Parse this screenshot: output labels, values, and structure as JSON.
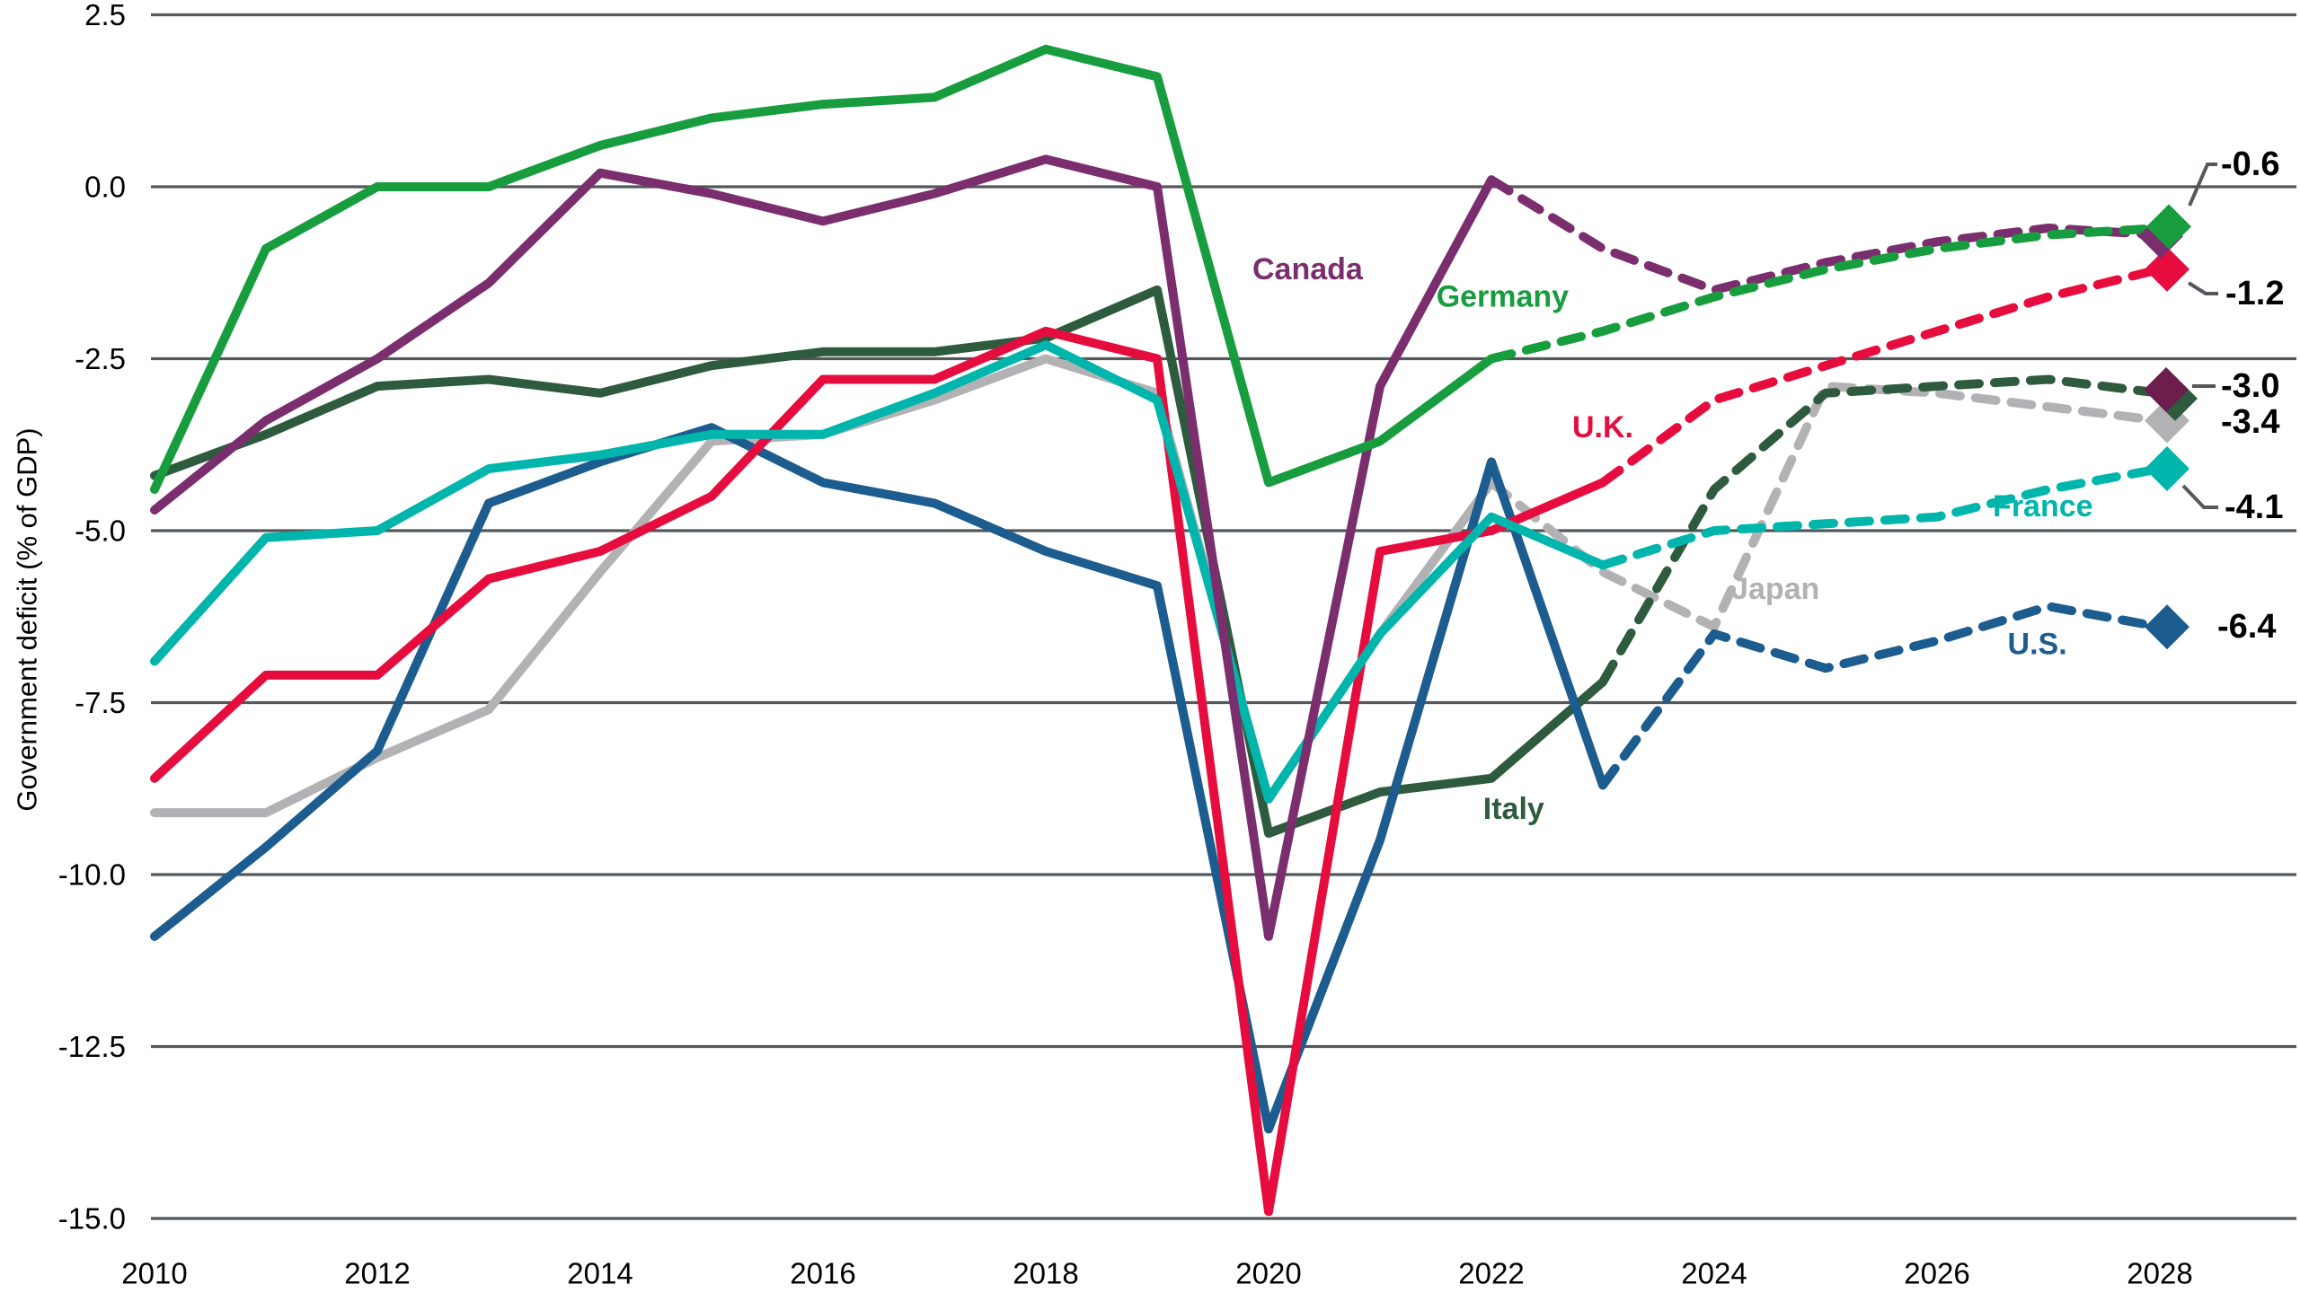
{
  "y_axis": {
    "title": "Government deficit (% of GDP)",
    "tick_labels": [
      "2.5",
      "0.0",
      "-2.5",
      "-5.0",
      "-7.5",
      "-10.0",
      "-12.5",
      "-15.0"
    ],
    "tick_values": [
      2.5,
      0.0,
      -2.5,
      -5.0,
      -7.5,
      -10.0,
      -12.5,
      -15.0
    ],
    "range": [
      -15.0,
      2.5
    ]
  },
  "x_axis": {
    "tick_labels": [
      "2010",
      "2012",
      "2014",
      "2016",
      "2018",
      "2020",
      "2022",
      "2024",
      "2026",
      "2028"
    ],
    "tick_values": [
      2010,
      2012,
      2014,
      2016,
      2018,
      2020,
      2022,
      2024,
      2026,
      2028
    ],
    "range": [
      2010,
      2028
    ]
  },
  "colors": {
    "grid": "#54575b",
    "axis_text": "#000000",
    "callout_text": "#000000",
    "callout_line": "#54575b",
    "italy_end_marker_overlay": "#6e1e4d"
  },
  "chart_data": {
    "type": "line",
    "x": [
      2010,
      2011,
      2012,
      2013,
      2014,
      2015,
      2016,
      2017,
      2018,
      2019,
      2020,
      2021,
      2022,
      2023,
      2024,
      2025,
      2026,
      2027,
      2028
    ],
    "grid": true,
    "projection_style": "dashed-after-last-actual",
    "series": [
      {
        "name": "Japan",
        "color": "#b2b2b4",
        "solid_until": 2022,
        "values": [
          -9.1,
          -9.1,
          -8.3,
          -7.6,
          -5.6,
          -3.7,
          -3.6,
          -3.1,
          -2.5,
          -3.0,
          -8.9,
          -6.5,
          -4.3,
          -5.6,
          -6.4,
          -2.9,
          -3.0,
          -3.2,
          -3.4
        ],
        "end_label": "-3.4",
        "label": {
          "text": "Japan",
          "year": 2024.55,
          "value": -5.85
        }
      },
      {
        "name": "Italy",
        "color": "#2e5b3e",
        "solid_until": 2023,
        "values": [
          -4.2,
          -3.6,
          -2.9,
          -2.8,
          -3.0,
          -2.6,
          -2.4,
          -2.4,
          -2.2,
          -1.5,
          -9.4,
          -8.8,
          -8.6,
          -7.2,
          -4.4,
          -3.0,
          -2.9,
          -2.8,
          -3.0
        ],
        "end_label": "-3.0",
        "label": {
          "text": "Italy",
          "year": 2022.2,
          "value": -9.05
        }
      },
      {
        "name": "U.S.",
        "color": "#1c5c8e",
        "solid_until": 2023,
        "values": [
          -10.9,
          -9.6,
          -8.2,
          -4.6,
          -4.0,
          -3.5,
          -4.3,
          -4.6,
          -5.3,
          -5.8,
          -13.7,
          -9.5,
          -4.0,
          -8.7,
          -6.5,
          -7.0,
          -6.6,
          -6.1,
          -6.4
        ],
        "end_label": "-6.4",
        "label": {
          "text": "U.S.",
          "year": 2026.9,
          "value": -6.65
        }
      },
      {
        "name": "U.K.",
        "color": "#e60d3e",
        "solid_until": 2023,
        "values": [
          -8.6,
          -7.1,
          -7.1,
          -5.7,
          -5.3,
          -4.5,
          -2.8,
          -2.8,
          -2.1,
          -2.5,
          -14.9,
          -5.3,
          -5.0,
          -4.3,
          -3.1,
          -2.6,
          -2.1,
          -1.6,
          -1.2
        ],
        "end_label": "-1.2",
        "label": {
          "text": "U.K.",
          "year": 2023.0,
          "value": -3.5
        }
      },
      {
        "name": "France",
        "color": "#00b5ab",
        "solid_until": 2023,
        "values": [
          -6.9,
          -5.1,
          -5.0,
          -4.1,
          -3.9,
          -3.6,
          -3.6,
          -3.0,
          -2.3,
          -3.1,
          -8.9,
          -6.5,
          -4.8,
          -5.5,
          -5.0,
          -4.9,
          -4.8,
          -4.4,
          -4.1
        ],
        "end_label": "-4.1",
        "label": {
          "text": "France",
          "year": 2026.95,
          "value": -4.65
        }
      },
      {
        "name": "Canada",
        "color": "#7b2e6e",
        "solid_until": 2022,
        "values": [
          -4.7,
          -3.4,
          -2.5,
          -1.4,
          0.2,
          -0.1,
          -0.5,
          -0.1,
          0.4,
          0.0,
          -10.9,
          -2.9,
          0.1,
          -0.9,
          -1.5,
          -1.1,
          -0.8,
          -0.6,
          -0.7
        ],
        "end_label": null,
        "label": {
          "text": "Canada",
          "year": 2020.35,
          "value": -1.2
        }
      },
      {
        "name": "Germany",
        "color": "#189d3e",
        "solid_until": 2022,
        "values": [
          -4.4,
          -0.9,
          0.0,
          0.0,
          0.6,
          1.0,
          1.2,
          1.3,
          2.0,
          1.6,
          -4.3,
          -3.7,
          -2.5,
          -2.1,
          -1.6,
          -1.2,
          -0.9,
          -0.7,
          -0.6
        ],
        "end_label": "-0.6",
        "label": {
          "text": "Germany",
          "year": 2022.1,
          "value": -1.6
        }
      }
    ],
    "end_value_callouts": [
      "-0.6",
      "-1.2",
      "-3.0",
      "-3.4",
      "-4.1",
      "-6.4"
    ]
  }
}
